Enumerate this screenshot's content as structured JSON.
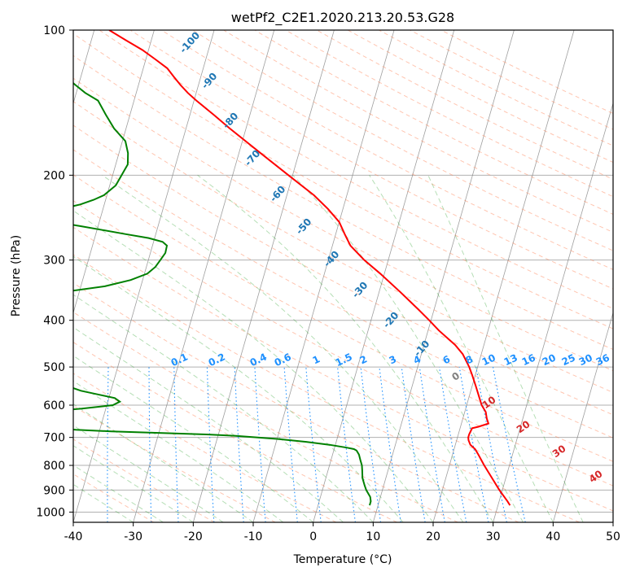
{
  "chart_data": {
    "type": "line",
    "subtype": "skew-T log-P diagram",
    "title": "wetPf2_C2E1.2020.213.20.53.G28",
    "xlabel": "Temperature (°C)",
    "ylabel": "Pressure (hPa)",
    "xlim": [
      -40,
      50
    ],
    "ylim": [
      1050,
      100
    ],
    "y_scale": "log",
    "grid": true,
    "x_ticks": [
      -40,
      -30,
      -20,
      -10,
      0,
      10,
      20,
      30,
      40,
      50
    ],
    "y_ticks": [
      100,
      200,
      300,
      400,
      500,
      600,
      700,
      800,
      900,
      1000
    ],
    "series": [
      {
        "color": "#ff0000",
        "p": [
          968,
          950,
          900,
          850,
          800,
          760,
          740,
          725,
          710,
          700,
          690,
          680,
          670,
          665,
          655,
          640,
          620,
          600,
          580,
          550,
          520,
          500,
          470,
          450,
          420,
          400,
          380,
          350,
          320,
          300,
          280,
          265,
          250,
          235,
          220,
          200,
          180,
          160,
          150,
          140,
          135,
          130,
          125,
          120,
          115,
          110,
          105,
          100
        ],
        "t": [
          32.0,
          31.4,
          29.5,
          27.7,
          25.8,
          24.3,
          23.5,
          22.5,
          22.0,
          21.8,
          21.8,
          21.9,
          22.0,
          23.0,
          24.5,
          24.0,
          23.5,
          22.5,
          21.8,
          20.7,
          19.5,
          18.6,
          16.9,
          15.2,
          11.8,
          9.7,
          7.4,
          3.6,
          -0.7,
          -4.0,
          -7.0,
          -8.5,
          -10.0,
          -12.5,
          -15.5,
          -20.7,
          -26.4,
          -32.7,
          -36.0,
          -39.6,
          -41.4,
          -43.0,
          -44.5,
          -46.0,
          -48.4,
          -51.0,
          -54.2,
          -57.5
        ]
      },
      {
        "color": "#008000",
        "p": [
          968,
          950,
          930,
          900,
          880,
          850,
          820,
          800,
          780,
          760,
          745,
          740,
          735,
          725,
          715,
          705,
          695,
          690,
          685,
          680,
          675,
          670,
          665,
          660,
          655,
          650,
          640,
          630,
          620,
          610,
          600,
          590,
          580,
          570,
          560,
          550,
          540,
          530,
          520,
          510,
          500
        ],
        "t": [
          8.6,
          8.6,
          8.3,
          7.3,
          6.8,
          6.1,
          5.7,
          5.4,
          4.9,
          4.4,
          3.8,
          3.3,
          2.0,
          -1.0,
          -5.0,
          -10.0,
          -17.0,
          -22.0,
          -30.0,
          -38.0,
          -44.0,
          -47.0,
          -49.0,
          -50.5,
          -52.0,
          -53.0,
          -54.5,
          -53.5,
          -50.5,
          -44.0,
          -39.0,
          -38.0,
          -39.0,
          -42.0,
          -45.0,
          -47.0,
          -49.0,
          -51.0,
          -51.8,
          -55.0,
          -61.0
        ]
      },
      {
        "color": "#008000",
        "p": [
          400,
          390,
          380,
          370,
          365,
          360,
          350,
          340,
          330,
          320,
          310,
          300,
          290,
          280,
          275,
          270,
          265,
          260,
          255,
          250,
          245,
          240,
          235,
          230,
          225,
          220,
          210,
          200,
          190,
          180,
          170,
          160,
          150,
          140,
          135,
          130,
          125,
          120,
          115,
          110,
          105,
          100
        ],
        "t": [
          -72.0,
          -71.5,
          -70.0,
          -69.0,
          -67.0,
          -62.0,
          -53.0,
          -46.0,
          -42.0,
          -39.5,
          -38.5,
          -38.0,
          -37.5,
          -37.6,
          -38.5,
          -41.0,
          -45.0,
          -49.0,
          -53.0,
          -57.5,
          -60.5,
          -60.0,
          -57.0,
          -54.0,
          -52.0,
          -50.5,
          -49.0,
          -48.5,
          -48.0,
          -48.5,
          -49.5,
          -52.0,
          -54.0,
          -56.0,
          -58.5,
          -60.5,
          -62.5,
          -65.0,
          -67.0,
          -69.0,
          -69.5,
          -70.0
        ]
      }
    ],
    "dry_adiabat_labels": [
      "-100",
      "-90",
      "-80",
      "-70",
      "-60",
      "-50",
      "-40",
      "-30",
      "-20",
      "-10"
    ],
    "moist_adiabat_labels": [
      "0",
      "10",
      "20",
      "30",
      "40"
    ],
    "mixing_ratio_labels": [
      "0.1",
      "0.2",
      "0.4",
      "0.6",
      "1",
      "1.5",
      "2",
      "3",
      "4",
      "6",
      "8",
      "10",
      "13",
      "16",
      "20",
      "25",
      "30",
      "36"
    ],
    "mixing_ratio_values": [
      0.1,
      0.2,
      0.4,
      0.6,
      1,
      1.5,
      2,
      3,
      4,
      6,
      8,
      10,
      13,
      16,
      20,
      25,
      30,
      36
    ],
    "colors": {
      "isotherm": "#7f7f7f",
      "isobar": "#b0b0b0",
      "dry_adiabat": "#ff7f50",
      "moist_adiabat": "#2ca02c",
      "mixing_ratio": "#1e90ff",
      "dry_label": "#1f77b4",
      "moist_label": "#d62728",
      "mixing_label": "#1e90ff",
      "zero_label": "#808080"
    }
  }
}
